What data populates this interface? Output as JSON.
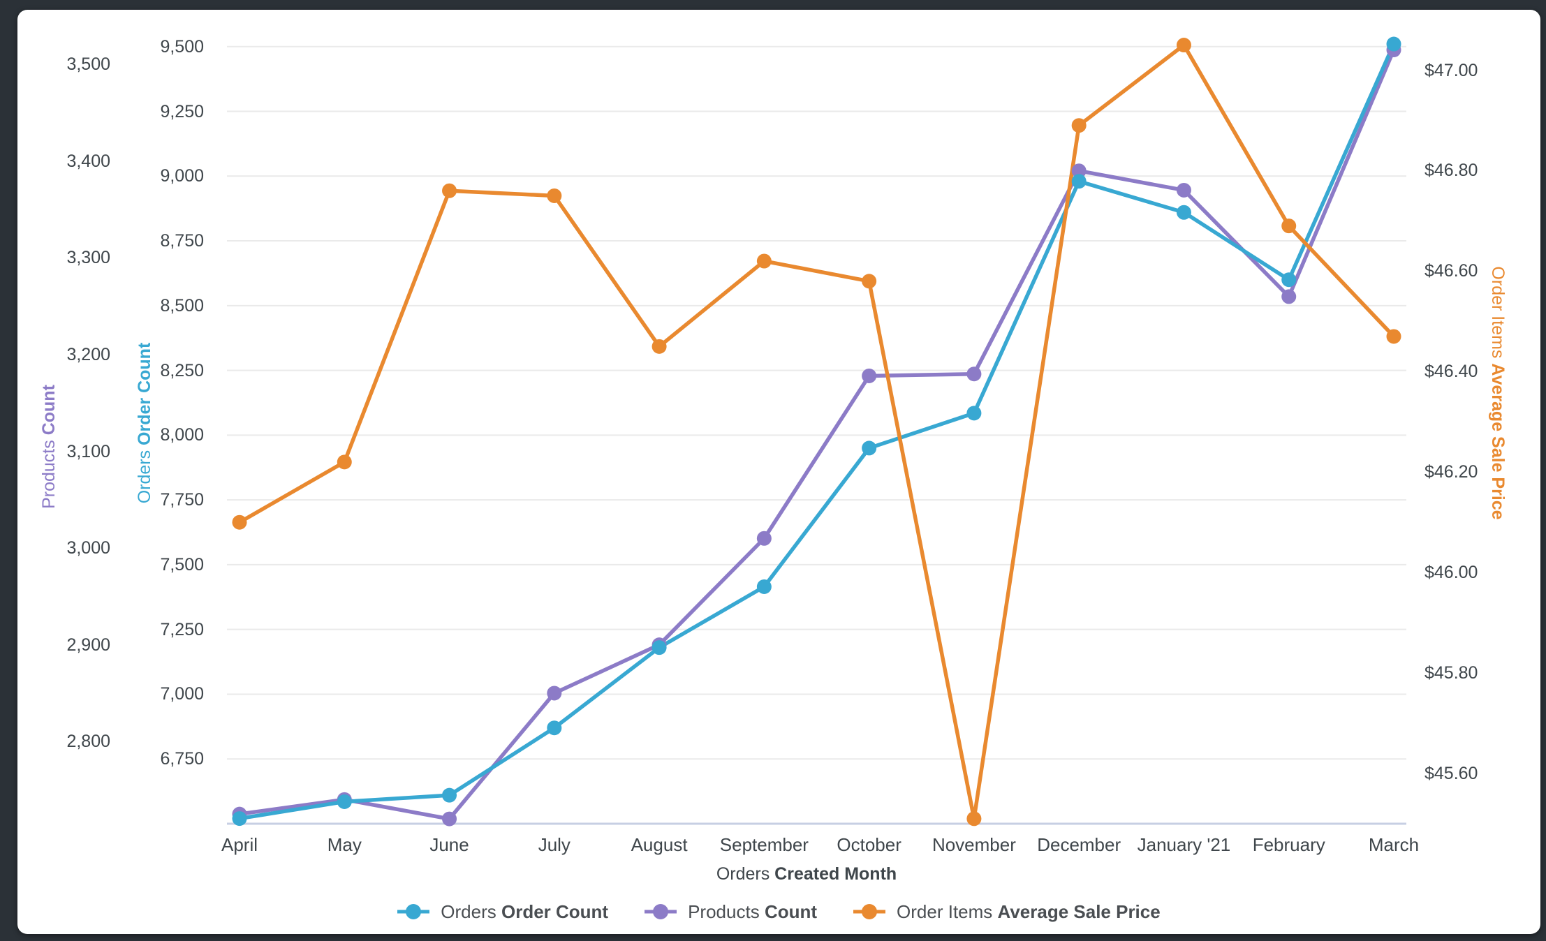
{
  "page": {
    "background": "#2b3137",
    "card_background": "#ffffff"
  },
  "chart_data": {
    "type": "line",
    "grid": true,
    "legend_position": "bottom",
    "x_axis": {
      "title_prefix": "Orders",
      "title_bold": "Created Month",
      "categories": [
        "April",
        "May",
        "June",
        "July",
        "August",
        "September",
        "October",
        "November",
        "December",
        "January '21",
        "February",
        "March"
      ]
    },
    "y_axes": [
      {
        "id": "products",
        "title_prefix": "Products",
        "title_bold": "Count",
        "color": "#8c7bc7",
        "range": [
          2715,
          3519
        ],
        "ticks": [
          {
            "label": "3,500",
            "value": 3500
          },
          {
            "label": "3,400",
            "value": 3400
          },
          {
            "label": "3,300",
            "value": 3300
          },
          {
            "label": "3,200",
            "value": 3200
          },
          {
            "label": "3,100",
            "value": 3100
          },
          {
            "label": "3,000",
            "value": 3000
          },
          {
            "label": "2,900",
            "value": 2900
          },
          {
            "label": "2,800",
            "value": 2800
          }
        ]
      },
      {
        "id": "orders",
        "title_prefix": "Orders",
        "title_bold": "Order Count",
        "color": "#38a8d2",
        "range": [
          6500,
          9502
        ],
        "ticks": [
          {
            "label": "9,500",
            "value": 9500
          },
          {
            "label": "9,250",
            "value": 9250
          },
          {
            "label": "9,000",
            "value": 9000
          },
          {
            "label": "8,750",
            "value": 8750
          },
          {
            "label": "8,500",
            "value": 8500
          },
          {
            "label": "8,250",
            "value": 8250
          },
          {
            "label": "8,000",
            "value": 8000
          },
          {
            "label": "7,750",
            "value": 7750
          },
          {
            "label": "7,500",
            "value": 7500
          },
          {
            "label": "7,250",
            "value": 7250
          },
          {
            "label": "7,000",
            "value": 7000
          },
          {
            "label": "6,750",
            "value": 6750
          }
        ]
      },
      {
        "id": "price",
        "title_prefix": "Order Items",
        "title_bold": "Average Sale Price",
        "color": "#e9892f",
        "range": [
          45.5,
          47.048
        ],
        "ticks": [
          {
            "label": "$47.00",
            "value": 47.0
          },
          {
            "label": "$46.80",
            "value": 46.8
          },
          {
            "label": "$46.60",
            "value": 46.6
          },
          {
            "label": "$46.40",
            "value": 46.4
          },
          {
            "label": "$46.20",
            "value": 46.2
          },
          {
            "label": "$46.00",
            "value": 46.0
          },
          {
            "label": "$45.80",
            "value": 45.8
          },
          {
            "label": "$45.60",
            "value": 45.6
          }
        ]
      }
    ],
    "gridline_axis": "orders",
    "series": [
      {
        "name_prefix": "Orders",
        "name_bold": "Order Count",
        "axis": "orders",
        "color": "#38a8d2",
        "values": [
          6520,
          6585,
          6610,
          6870,
          7180,
          7415,
          7950,
          8085,
          8980,
          8860,
          8600,
          9510
        ]
      },
      {
        "name_prefix": "Products",
        "name_bold": "Count",
        "axis": "products",
        "color": "#8c7bc7",
        "values": [
          2725,
          2740,
          2720,
          2850,
          2900,
          3010,
          3178,
          3180,
          3390,
          3370,
          3260,
          3515
        ]
      },
      {
        "name_prefix": "Order Items",
        "name_bold": "Average Sale Price",
        "axis": "price",
        "color": "#e9892f",
        "values": [
          46.1,
          46.22,
          46.76,
          46.75,
          46.45,
          46.62,
          46.58,
          45.51,
          46.89,
          47.05,
          46.69,
          46.47
        ]
      }
    ]
  }
}
